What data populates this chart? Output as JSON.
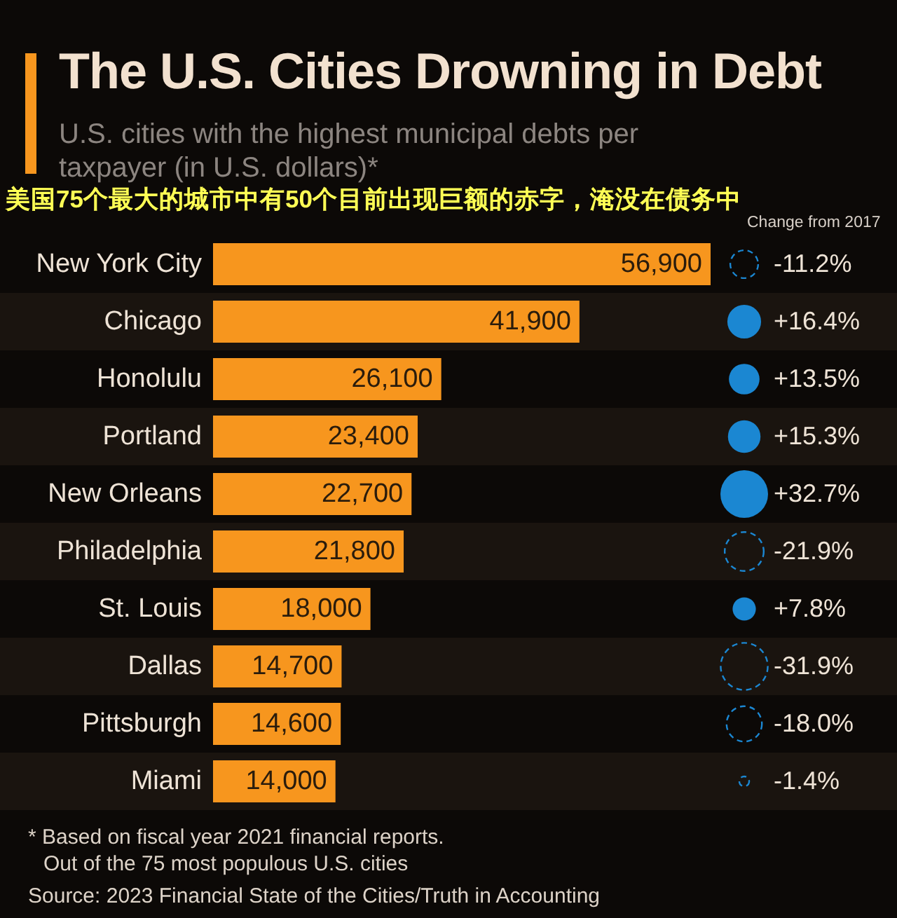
{
  "chart_data": [
    {
      "type": "bar",
      "orientation": "horizontal",
      "title": "The U.S. Cities Drowning in Debt",
      "subtitle": "U.S. cities with the highest municipal debts per taxpayer (in U.S. dollars)*",
      "categories": [
        "New York City",
        "Chicago",
        "Honolulu",
        "Portland",
        "New Orleans",
        "Philadelphia",
        "St. Louis",
        "Dallas",
        "Pittsburgh",
        "Miami"
      ],
      "values": [
        56900,
        41900,
        26100,
        23400,
        22700,
        21800,
        18000,
        14700,
        14600,
        14000
      ],
      "value_labels": [
        "56,900",
        "41,900",
        "26,100",
        "23,400",
        "22,700",
        "21,800",
        "18,000",
        "14,700",
        "14,600",
        "14,000"
      ],
      "color": "#f7961e",
      "annotations": [
        "美国75个最大的城市中有50个目前出现巨额的赤字，淹没在债务中",
        "* Based on fiscal year 2021 financial reports.",
        "Out of the 75 most populous U.S. cities",
        "Source: 2023 Financial State of the Cities/Truth in Accounting"
      ]
    },
    {
      "type": "other",
      "title": "Change from 2017",
      "categories": [
        null,
        null,
        null,
        null,
        null,
        null,
        null,
        null,
        null,
        null
      ],
      "values": [
        -11.2,
        16.4,
        13.5,
        15.3,
        32.7,
        -21.9,
        7.8,
        -31.9,
        -18.0,
        -1.4
      ],
      "value_labels": [
        "-11.2%",
        "+16.4%",
        "+13.5%",
        "+15.3%",
        "+32.7%",
        "-21.9%",
        "+7.8%",
        "-31.9%",
        "-18.0%",
        "-1.4%"
      ],
      "color": "#1b87d2"
    }
  ]
}
